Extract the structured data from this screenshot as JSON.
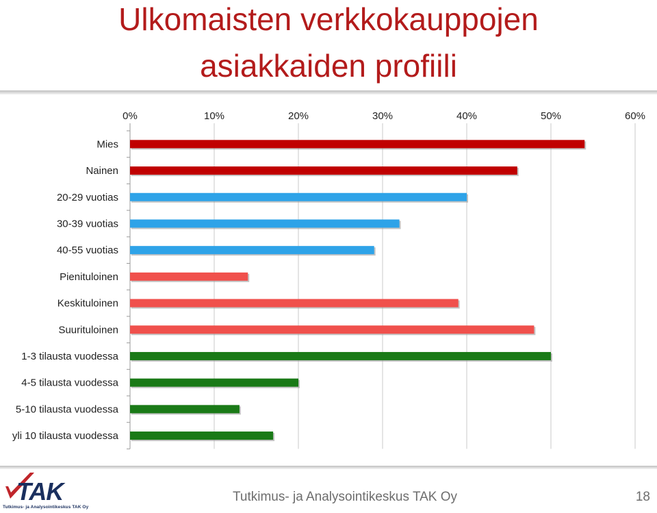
{
  "slide": {
    "title_line1": "Ulkomaisten verkkokauppojen",
    "title_line2": "asiakkaiden profiili",
    "footer_text": "Tutkimus- ja Analysointikeskus TAK Oy",
    "page_number": "18"
  },
  "logo": {
    "text": "TAK",
    "subtitle": "Tutkimus- ja Analysointikeskus TAK Oy"
  },
  "colors": {
    "title": "#b31b1b",
    "gender": "#c00000",
    "age": "#2ea3e8",
    "income": "#f0504c",
    "orders": "#1a7a17",
    "gridline": "#c8c8c8",
    "logo_blue": "#1a2f5e",
    "logo_red": "#c0262b"
  },
  "chart_data": {
    "type": "bar",
    "orientation": "horizontal",
    "title": "",
    "xlabel": "",
    "ylabel": "",
    "xlim": [
      0,
      60
    ],
    "x_axis_position": "top",
    "tick_labels": [
      "0%",
      "10%",
      "20%",
      "30%",
      "40%",
      "50%",
      "60%"
    ],
    "grid": true,
    "legend": "none",
    "categories": [
      "Mies",
      "Nainen",
      "20-29 vuotias",
      "30-39 vuotias",
      "40-55 vuotias",
      "Pienituloinen",
      "Keskituloinen",
      "Suurituloinen",
      "1-3 tilausta vuodessa",
      "4-5 tilausta vuodessa",
      "5-10 tilausta vuodessa",
      "yli 10 tilausta vuodessa"
    ],
    "values": [
      54,
      46,
      40,
      32,
      29,
      14,
      39,
      48,
      50,
      20,
      13,
      17
    ],
    "bar_colors": [
      "#c00000",
      "#c00000",
      "#2ea3e8",
      "#2ea3e8",
      "#2ea3e8",
      "#f0504c",
      "#f0504c",
      "#f0504c",
      "#1a7a17",
      "#1a7a17",
      "#1a7a17",
      "#1a7a17"
    ]
  }
}
